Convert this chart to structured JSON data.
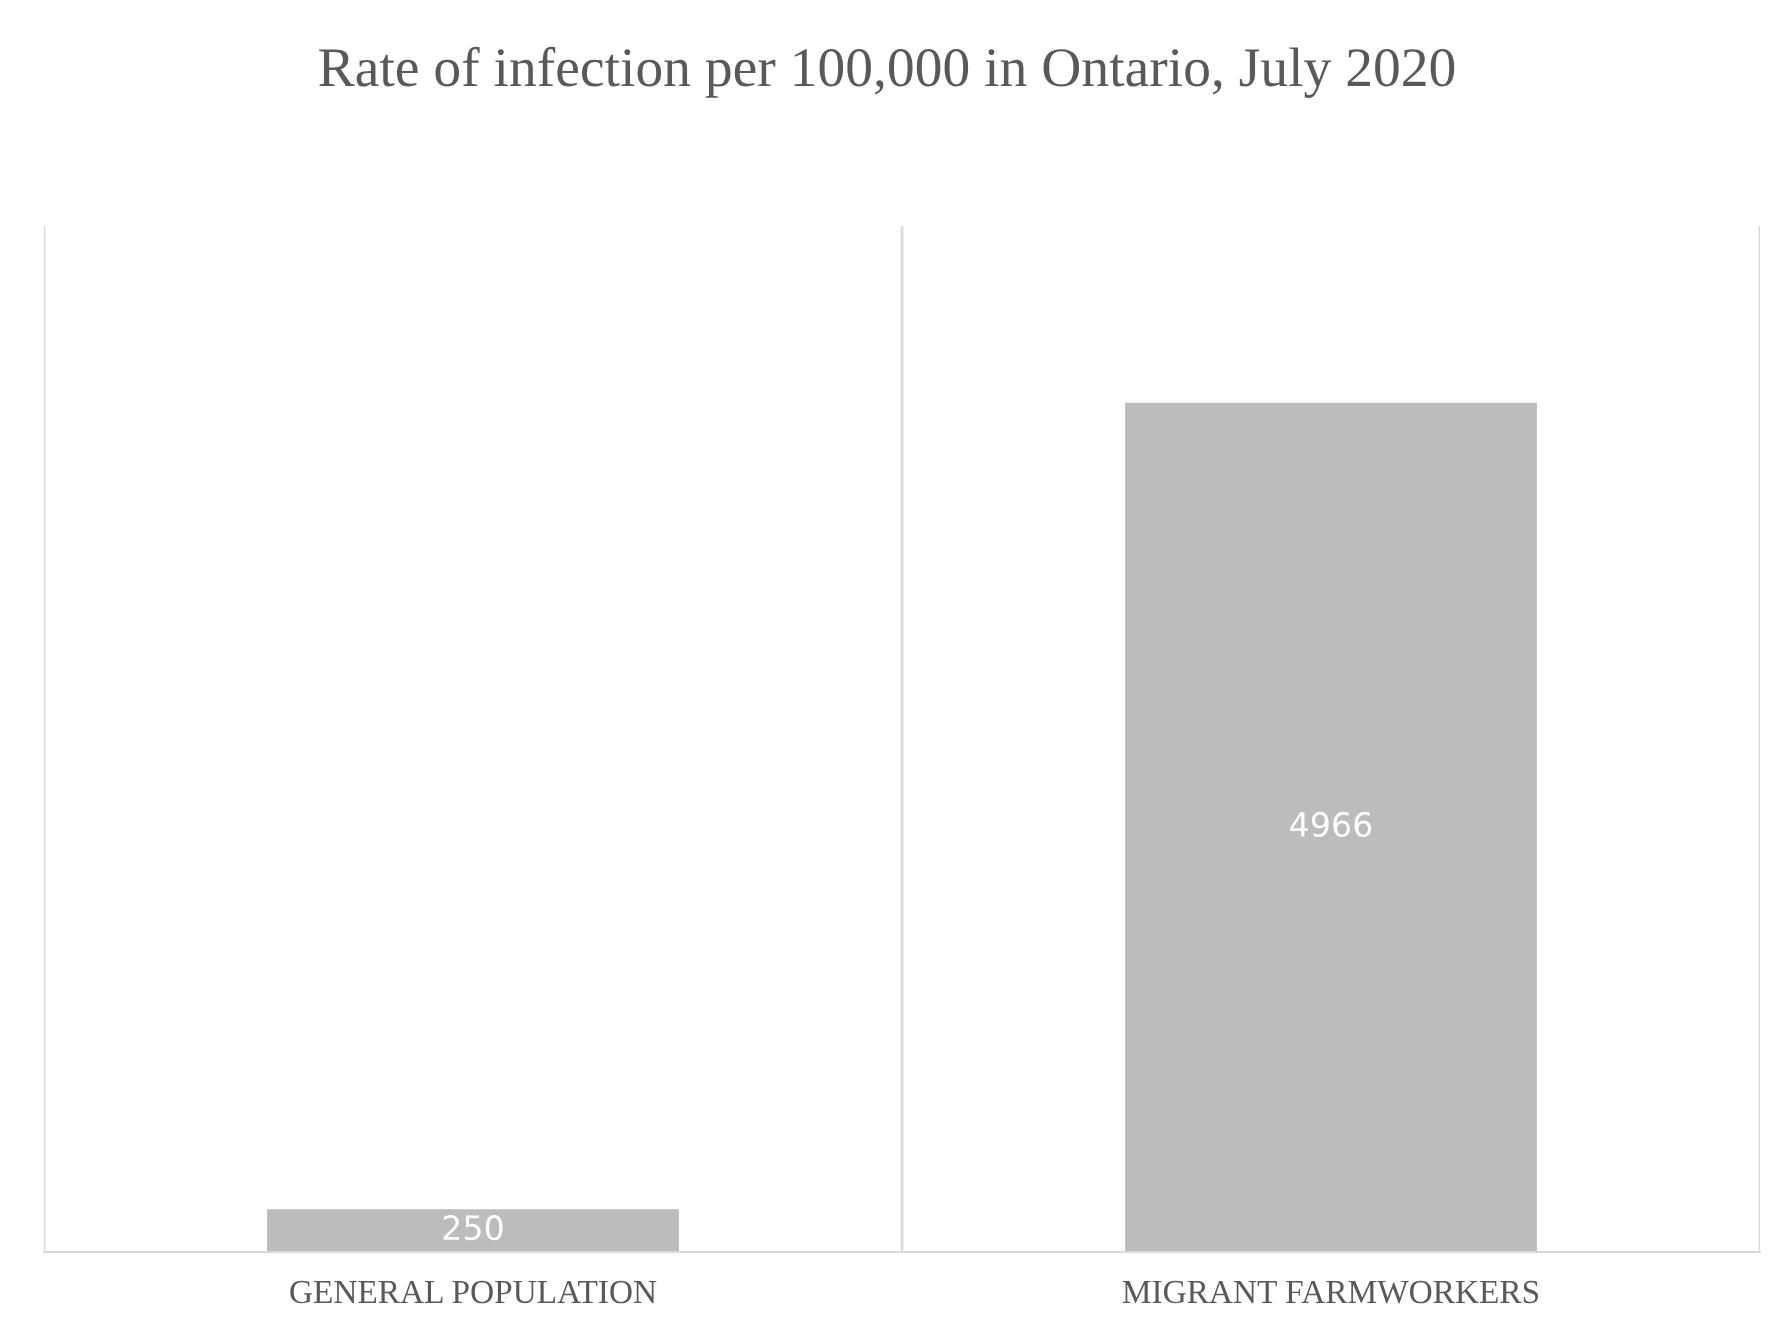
{
  "chart_data": {
    "type": "bar",
    "title": "Rate of infection per 100,000 in Ontario, July 2020",
    "categories": [
      "GENERAL POPULATION",
      "MIGRANT FARMWORKERS"
    ],
    "values": [
      250,
      4966
    ],
    "color": "#bcbcbc",
    "data_labels": true,
    "ylim": [
      0,
      6000
    ],
    "grid": "x"
  }
}
